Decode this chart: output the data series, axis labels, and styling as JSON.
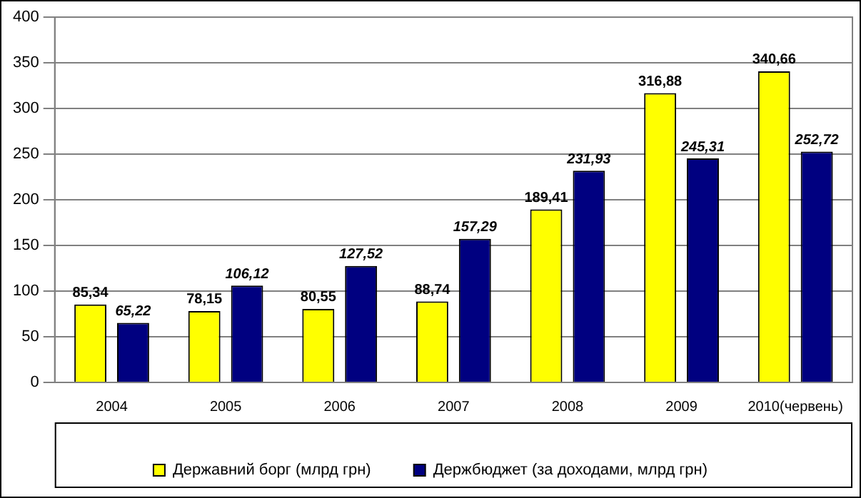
{
  "chart_data": {
    "type": "bar",
    "categories": [
      "2004",
      "2005",
      "2006",
      "2007",
      "2008",
      "2009",
      "2010(червень)"
    ],
    "series": [
      {
        "name": "Державний борг (млрд грн)",
        "color": "#ffff00",
        "values": [
          85.34,
          78.15,
          80.55,
          88.74,
          189.41,
          316.88,
          340.66
        ],
        "value_labels": [
          "85,34",
          "78,15",
          "80,55",
          "88,74",
          "189,41",
          "316,88",
          "340,66"
        ]
      },
      {
        "name": "Держбюджет (за доходами, млрд грн)",
        "color": "#000080",
        "values": [
          65.22,
          106.12,
          127.52,
          157.29,
          231.93,
          245.31,
          252.72
        ],
        "value_labels": [
          "65,22",
          "106,12",
          "127,52",
          "157,29",
          "231,93",
          "245,31",
          "252,72"
        ]
      }
    ],
    "ylim": [
      0,
      400
    ],
    "yticks": [
      0,
      50,
      100,
      150,
      200,
      250,
      300,
      350,
      400
    ],
    "grid": "y",
    "legend": "bottom"
  }
}
